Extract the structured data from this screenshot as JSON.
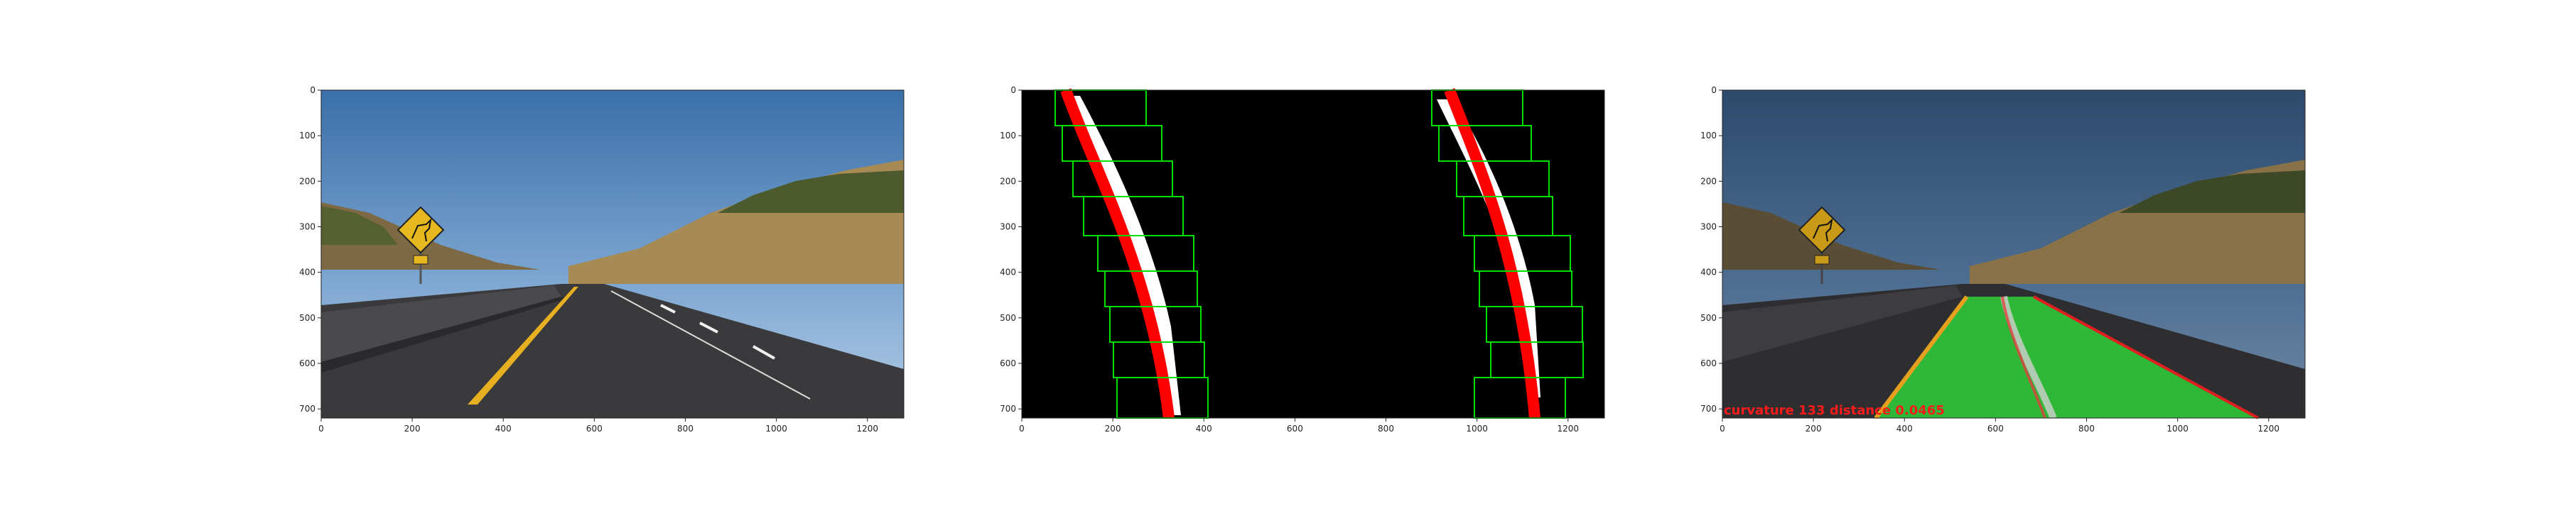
{
  "figure": {
    "panels": [
      {
        "id": "original",
        "xticks": [
          "0",
          "200",
          "400",
          "600",
          "800",
          "1000",
          "1200"
        ],
        "yticks": [
          "0",
          "100",
          "200",
          "300",
          "400",
          "500",
          "600",
          "700"
        ],
        "sign_icon": "deer-crossing-sign-icon"
      },
      {
        "id": "sliding-window",
        "xticks": [
          "0",
          "200",
          "400",
          "600",
          "800",
          "1000",
          "1200"
        ],
        "yticks": [
          "0",
          "100",
          "200",
          "300",
          "400",
          "500",
          "600",
          "700"
        ],
        "colors": {
          "window": "#00e000",
          "fit": "#ff0000",
          "pixels": "#ffffff",
          "background": "#000000"
        }
      },
      {
        "id": "result",
        "xticks": [
          "0",
          "200",
          "400",
          "600",
          "800",
          "1000",
          "1200"
        ],
        "yticks": [
          "0",
          "100",
          "200",
          "300",
          "400",
          "500",
          "600",
          "700"
        ],
        "overlay_text": "curvature 133 distance 0.0465",
        "colors": {
          "lane_fill": "#2fcf3a",
          "overlay_text": "#ff1a1a"
        }
      }
    ]
  }
}
